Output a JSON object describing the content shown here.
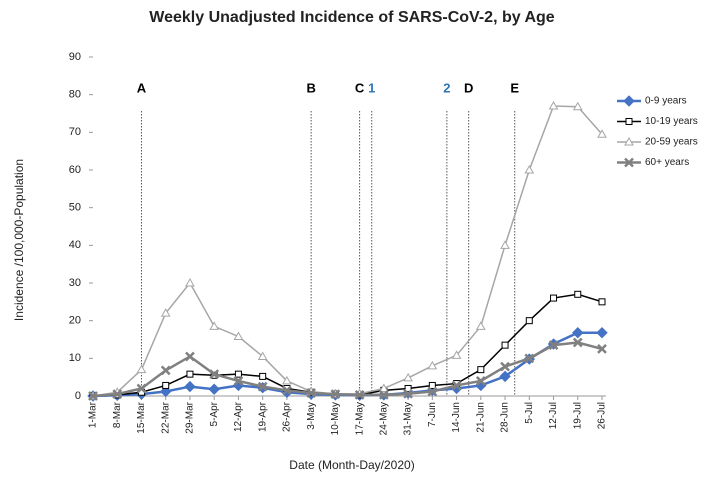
{
  "chart_data": {
    "type": "line",
    "title": "Weekly Unadjusted Incidence of SARS-CoV-2, by Age",
    "x_label": "Date (Month-Day/2020)",
    "y_label": "Incidence /100,000-Population",
    "categories": [
      "1-Mar",
      "8-Mar",
      "15-Mar",
      "22-Mar",
      "29-Mar",
      "5-Apr",
      "12-Apr",
      "19-Apr",
      "26-Apr",
      "3-May",
      "10-May",
      "17-May",
      "24-May",
      "31-May",
      "7-Jun",
      "14-Jun",
      "21-Jun",
      "28-Jun",
      "5-Jul",
      "12-Jul",
      "19-Jul",
      "26-Jul"
    ],
    "ylim": [
      0,
      90
    ],
    "yticks": [
      0,
      10,
      20,
      30,
      40,
      50,
      60,
      70,
      80,
      90
    ],
    "grid": false,
    "legend": "right",
    "series": [
      {
        "name": "0-9 years",
        "color": "#4472c4",
        "marker": "diamond",
        "values": [
          0,
          0.2,
          0.5,
          1.2,
          2.5,
          1.8,
          2.8,
          2.2,
          1,
          0.5,
          0.3,
          0.2,
          0.3,
          0.8,
          1.5,
          2,
          2.8,
          5.2,
          9.8,
          13.8,
          16.8,
          16.8
        ]
      },
      {
        "name": "10-19 years",
        "color": "#000000",
        "marker": "square",
        "values": [
          0,
          0.3,
          1,
          2.8,
          5.8,
          5.5,
          5.8,
          5.2,
          2,
          1,
          0.5,
          0.3,
          1.5,
          2,
          2.8,
          3.3,
          7,
          13.5,
          20,
          26,
          27,
          25
        ]
      },
      {
        "name": "20-59 years",
        "color": "#a6a6a6",
        "marker": "triangle",
        "values": [
          0,
          1,
          7,
          22,
          30,
          18.5,
          15.8,
          10.5,
          4,
          1.2,
          0.5,
          0.6,
          2,
          4.8,
          8,
          10.8,
          18.5,
          40,
          60,
          77,
          76.8,
          69.5
        ]
      },
      {
        "name": "60+ years",
        "color": "#808080",
        "marker": "x",
        "values": [
          0,
          0.5,
          2,
          6.8,
          10.5,
          5.8,
          4,
          2.5,
          1.5,
          0.8,
          0.5,
          0.3,
          0.3,
          0.6,
          1.2,
          2.8,
          4,
          7.8,
          10,
          13.5,
          14.2,
          12.5
        ]
      }
    ],
    "annotations": [
      {
        "label": "A",
        "x": 2,
        "color": "#000000"
      },
      {
        "label": "B",
        "x": 9,
        "color": "#000000"
      },
      {
        "label": "C",
        "x": 11,
        "color": "#000000"
      },
      {
        "label": "1",
        "x": 11.5,
        "color": "#2e75b6"
      },
      {
        "label": "2",
        "x": 14.6,
        "color": "#2e75b6"
      },
      {
        "label": "D",
        "x": 15.5,
        "color": "#000000"
      },
      {
        "label": "E",
        "x": 17.4,
        "color": "#000000"
      }
    ]
  }
}
